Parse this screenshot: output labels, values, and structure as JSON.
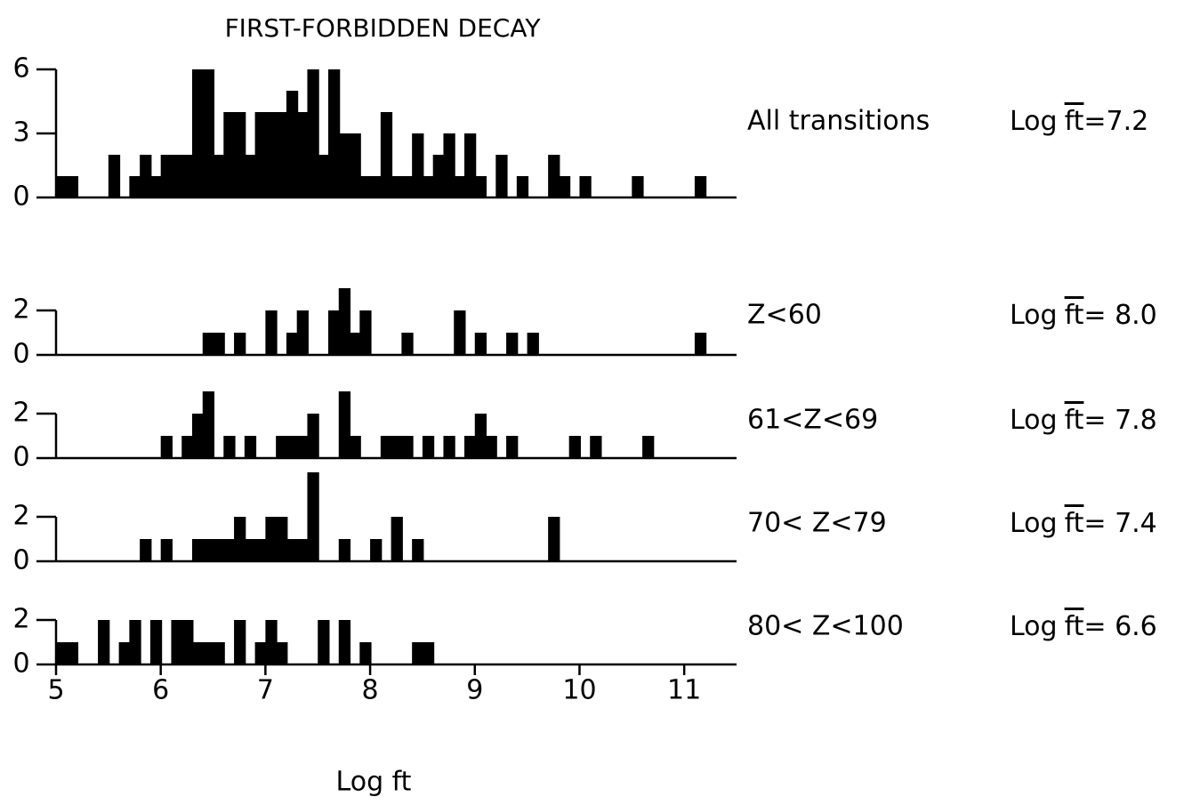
{
  "chart_data": [
    {
      "type": "histogram",
      "title": "FIRST-FORBIDDEN DECAY",
      "label": "All transitions",
      "annotation": {
        "prefix": "Log",
        "symbol": "ft",
        "suffix": "=7.2"
      },
      "bins": [
        5.0,
        5.1,
        5.2,
        5.3,
        5.4,
        5.5,
        5.6,
        5.7,
        5.8,
        5.9,
        6.0,
        6.1,
        6.2,
        6.3,
        6.4,
        6.5,
        6.6,
        6.7,
        6.8,
        6.9,
        7.0,
        7.1,
        7.2,
        7.3,
        7.4,
        7.5,
        7.6,
        7.7,
        7.8,
        7.9,
        8.0,
        8.1,
        8.2,
        8.3,
        8.4,
        8.5,
        8.6,
        8.7,
        8.8,
        8.9,
        9.0,
        9.1,
        9.2,
        9.3,
        9.4,
        9.5,
        9.6,
        9.7,
        9.8,
        9.9,
        10.0,
        10.1,
        10.2,
        10.3,
        10.4,
        10.5,
        10.6,
        10.7,
        10.8,
        10.9,
        11.0,
        11.1,
        11.2,
        11.3
      ],
      "values": [
        1,
        1,
        0,
        0,
        0,
        2,
        0,
        1,
        2,
        1,
        2,
        2,
        2,
        6,
        6,
        2,
        4,
        4,
        2,
        4,
        4,
        4,
        5,
        4,
        6,
        2,
        6,
        3,
        3,
        1,
        1,
        4,
        1,
        1,
        3,
        1,
        2,
        3,
        1,
        3,
        1,
        0,
        2,
        0,
        1,
        0,
        0,
        2,
        1,
        0,
        1,
        0,
        0,
        0,
        0,
        1,
        0,
        0,
        0,
        0,
        0,
        1,
        0
      ],
      "color": "#000000",
      "xlim": [
        5,
        11.5
      ],
      "ylim": [
        0,
        6.5
      ],
      "yticks": [
        0,
        3,
        6
      ]
    },
    {
      "type": "histogram",
      "label": "Z<60",
      "annotation": {
        "prefix": "Log",
        "symbol": "ft",
        "suffix": "= 8.0"
      },
      "bins": [
        5.0,
        5.1,
        5.2,
        5.3,
        5.4,
        5.5,
        5.6,
        5.7,
        5.8,
        5.9,
        6.0,
        6.1,
        6.2,
        6.3,
        6.4,
        6.5,
        6.6,
        6.7,
        6.8,
        6.9,
        7.0,
        7.1,
        7.2,
        7.3,
        7.4,
        7.5,
        7.6,
        7.7,
        7.8,
        7.9,
        8.0,
        8.1,
        8.2,
        8.3,
        8.4,
        8.5,
        8.6,
        8.7,
        8.8,
        8.9,
        9.0,
        9.1,
        9.2,
        9.3,
        9.4,
        9.5,
        9.6,
        9.7,
        9.8,
        9.9,
        10.0,
        10.1,
        10.2,
        10.3,
        10.4,
        10.5,
        10.6,
        10.7,
        10.8,
        10.9,
        11.0,
        11.1,
        11.2,
        11.3
      ],
      "values": [
        0,
        0,
        0,
        0,
        0,
        0,
        0,
        0,
        0,
        0,
        0,
        0,
        0,
        0,
        1,
        1,
        0,
        1,
        0,
        0,
        2,
        0,
        1,
        2,
        0,
        0,
        2,
        3,
        1,
        2,
        0,
        0,
        0,
        1,
        0,
        0,
        0,
        0,
        2,
        0,
        1,
        0,
        0,
        1,
        0,
        1,
        0,
        0,
        0,
        0,
        0,
        0,
        0,
        0,
        0,
        0,
        0,
        0,
        0,
        0,
        0,
        1,
        0
      ],
      "color": "#000000",
      "xlim": [
        5,
        11.5
      ],
      "ylim": [
        0,
        4
      ],
      "yticks": [
        0,
        2
      ]
    },
    {
      "type": "histogram",
      "label": "61<Z<69",
      "annotation": {
        "prefix": "Log",
        "symbol": "ft",
        "suffix": "= 7.8"
      },
      "bins": [
        5.0,
        5.1,
        5.2,
        5.3,
        5.4,
        5.5,
        5.6,
        5.7,
        5.8,
        5.9,
        6.0,
        6.1,
        6.2,
        6.3,
        6.4,
        6.5,
        6.6,
        6.7,
        6.8,
        6.9,
        7.0,
        7.1,
        7.2,
        7.3,
        7.4,
        7.5,
        7.6,
        7.7,
        7.8,
        7.9,
        8.0,
        8.1,
        8.2,
        8.3,
        8.4,
        8.5,
        8.6,
        8.7,
        8.8,
        8.9,
        9.0,
        9.1,
        9.2,
        9.3,
        9.4,
        9.5,
        9.6,
        9.7,
        9.8,
        9.9,
        10.0,
        10.1,
        10.2,
        10.3,
        10.4,
        10.5,
        10.6,
        10.7,
        10.8,
        10.9,
        11.0,
        11.1,
        11.2,
        11.3
      ],
      "values": [
        0,
        0,
        0,
        0,
        0,
        0,
        0,
        0,
        0,
        0,
        1,
        0,
        1,
        2,
        3,
        0,
        1,
        0,
        1,
        0,
        0,
        1,
        1,
        1,
        2,
        0,
        0,
        3,
        1,
        0,
        0,
        1,
        1,
        1,
        0,
        1,
        0,
        1,
        0,
        1,
        2,
        1,
        0,
        1,
        0,
        0,
        0,
        0,
        0,
        1,
        0,
        1,
        0,
        0,
        0,
        0,
        1,
        0,
        0,
        0,
        0,
        0,
        0
      ],
      "color": "#000000",
      "xlim": [
        5,
        11.5
      ],
      "ylim": [
        0,
        4
      ],
      "yticks": [
        0,
        2
      ]
    },
    {
      "type": "histogram",
      "label": "70< Z<79",
      "annotation": {
        "prefix": "Log",
        "symbol": "ft",
        "suffix": "= 7.4"
      },
      "bins": [
        5.0,
        5.1,
        5.2,
        5.3,
        5.4,
        5.5,
        5.6,
        5.7,
        5.8,
        5.9,
        6.0,
        6.1,
        6.2,
        6.3,
        6.4,
        6.5,
        6.6,
        6.7,
        6.8,
        6.9,
        7.0,
        7.1,
        7.2,
        7.3,
        7.4,
        7.5,
        7.6,
        7.7,
        7.8,
        7.9,
        8.0,
        8.1,
        8.2,
        8.3,
        8.4,
        8.5,
        8.6,
        8.7,
        8.8,
        8.9,
        9.0,
        9.1,
        9.2,
        9.3,
        9.4,
        9.5,
        9.6,
        9.7,
        9.8,
        9.9,
        10.0,
        10.1,
        10.2,
        10.3,
        10.4,
        10.5,
        10.6,
        10.7,
        10.8,
        10.9,
        11.0,
        11.1,
        11.2,
        11.3
      ],
      "values": [
        0,
        0,
        0,
        0,
        0,
        0,
        0,
        0,
        1,
        0,
        1,
        0,
        0,
        1,
        1,
        1,
        1,
        2,
        1,
        1,
        2,
        2,
        1,
        1,
        4,
        0,
        0,
        1,
        0,
        0,
        1,
        0,
        2,
        0,
        1,
        0,
        0,
        0,
        0,
        0,
        0,
        0,
        0,
        0,
        0,
        0,
        0,
        2,
        0,
        0,
        0,
        0,
        0,
        0,
        0,
        0,
        0,
        0,
        0,
        0,
        0,
        0,
        0
      ],
      "color": "#000000",
      "xlim": [
        5,
        11.5
      ],
      "ylim": [
        0,
        4
      ],
      "yticks": [
        0,
        2
      ]
    },
    {
      "type": "histogram",
      "label": "80< Z<100",
      "annotation": {
        "prefix": "Log",
        "symbol": "ft",
        "suffix": "= 6.6"
      },
      "bins": [
        5.0,
        5.1,
        5.2,
        5.3,
        5.4,
        5.5,
        5.6,
        5.7,
        5.8,
        5.9,
        6.0,
        6.1,
        6.2,
        6.3,
        6.4,
        6.5,
        6.6,
        6.7,
        6.8,
        6.9,
        7.0,
        7.1,
        7.2,
        7.3,
        7.4,
        7.5,
        7.6,
        7.7,
        7.8,
        7.9,
        8.0,
        8.1,
        8.2,
        8.3,
        8.4,
        8.5,
        8.6,
        8.7,
        8.8,
        8.9,
        9.0,
        9.1,
        9.2,
        9.3,
        9.4,
        9.5,
        9.6,
        9.7,
        9.8,
        9.9,
        10.0,
        10.1,
        10.2,
        10.3,
        10.4,
        10.5,
        10.6,
        10.7,
        10.8,
        10.9,
        11.0,
        11.1,
        11.2,
        11.3
      ],
      "values": [
        1,
        1,
        0,
        0,
        2,
        0,
        1,
        2,
        0,
        2,
        0,
        2,
        2,
        1,
        1,
        1,
        0,
        2,
        0,
        1,
        2,
        1,
        0,
        0,
        0,
        2,
        0,
        2,
        0,
        1,
        0,
        0,
        0,
        0,
        1,
        1,
        0,
        0,
        0,
        0,
        0,
        0,
        0,
        0,
        0,
        0,
        0,
        0,
        0,
        0,
        0,
        0,
        0,
        0,
        0,
        0,
        0,
        0,
        0,
        0,
        0,
        0,
        0
      ],
      "color": "#000000",
      "xlim": [
        5,
        11.5
      ],
      "ylim": [
        0,
        4
      ],
      "yticks": [
        0,
        2
      ],
      "xticks": [
        5,
        6,
        7,
        8,
        9,
        10,
        11
      ],
      "xlabel": "Log ft"
    }
  ]
}
